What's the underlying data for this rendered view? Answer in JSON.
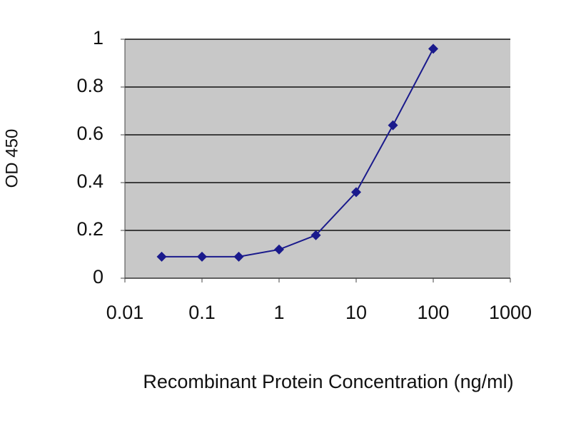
{
  "chart_data": {
    "type": "line",
    "x_label": "Recombinant Protein Concentration (ng/ml)",
    "y_label": "OD 450",
    "x": [
      0.03,
      0.1,
      0.3,
      1,
      3,
      10,
      30,
      100
    ],
    "values": [
      0.09,
      0.09,
      0.09,
      0.12,
      0.18,
      0.36,
      0.64,
      0.96
    ],
    "color": "#1a1a8c",
    "xlog": true,
    "xlim": [
      0.01,
      1000
    ],
    "xticks": [
      0.01,
      0.1,
      1,
      10,
      100,
      1000
    ],
    "ylim": [
      0,
      1
    ],
    "yticks": [
      0,
      0.2,
      0.4,
      0.6,
      0.8,
      1
    ],
    "grid": true
  }
}
